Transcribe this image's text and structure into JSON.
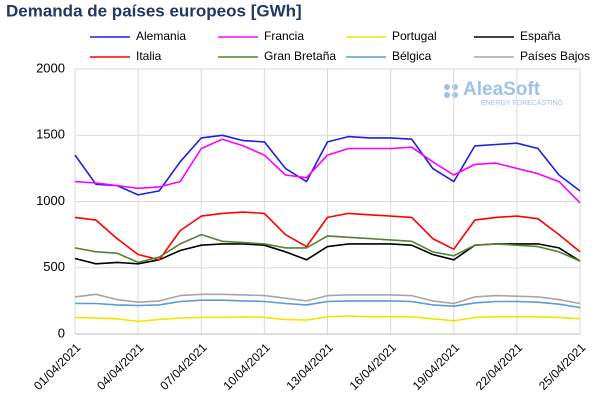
{
  "chart_data": {
    "type": "line",
    "title": "Demanda de países europeos [GWh]",
    "watermark": {
      "name": "AleaSoft",
      "tagline": "ENERGY FORECASTING"
    },
    "x": [
      "01/04/2021",
      "02/04/2021",
      "03/04/2021",
      "04/04/2021",
      "05/04/2021",
      "06/04/2021",
      "07/04/2021",
      "08/04/2021",
      "09/04/2021",
      "10/04/2021",
      "11/04/2021",
      "12/04/2021",
      "13/04/2021",
      "14/04/2021",
      "15/04/2021",
      "16/04/2021",
      "17/04/2021",
      "18/04/2021",
      "19/04/2021",
      "20/04/2021",
      "21/04/2021",
      "22/04/2021",
      "23/04/2021",
      "24/04/2021",
      "25/04/2021"
    ],
    "xticks": [
      "01/04/2021",
      "04/04/2021",
      "07/04/2021",
      "10/04/2021",
      "13/04/2021",
      "16/04/2021",
      "19/04/2021",
      "22/04/2021",
      "25/04/2021"
    ],
    "ylim": [
      0,
      2000
    ],
    "yticks": [
      0,
      500,
      1000,
      1500,
      2000
    ],
    "grid": true,
    "series": [
      {
        "name": "Alemania",
        "color": "#1f1fe0",
        "values": [
          1350,
          1130,
          1120,
          1050,
          1080,
          1300,
          1480,
          1500,
          1460,
          1450,
          1250,
          1150,
          1450,
          1490,
          1480,
          1480,
          1470,
          1250,
          1150,
          1420,
          1430,
          1440,
          1400,
          1200,
          1080
        ]
      },
      {
        "name": "Francia",
        "color": "#ff00ff",
        "values": [
          1150,
          1140,
          1120,
          1100,
          1110,
          1150,
          1400,
          1470,
          1420,
          1350,
          1200,
          1180,
          1350,
          1400,
          1400,
          1400,
          1410,
          1300,
          1200,
          1280,
          1290,
          1250,
          1210,
          1150,
          990
        ]
      },
      {
        "name": "Portugal",
        "color": "#f2e600",
        "values": [
          125,
          120,
          115,
          95,
          110,
          120,
          125,
          125,
          130,
          125,
          110,
          105,
          130,
          135,
          130,
          130,
          130,
          115,
          100,
          125,
          130,
          130,
          130,
          125,
          115
        ]
      },
      {
        "name": "España",
        "color": "#000000",
        "values": [
          570,
          530,
          540,
          530,
          560,
          630,
          670,
          680,
          680,
          670,
          620,
          560,
          660,
          680,
          680,
          680,
          670,
          600,
          560,
          670,
          680,
          680,
          680,
          650,
          550
        ]
      },
      {
        "name": "Italia",
        "color": "#ff0000",
        "values": [
          880,
          860,
          720,
          600,
          560,
          780,
          890,
          910,
          920,
          910,
          750,
          660,
          880,
          910,
          900,
          890,
          880,
          720,
          640,
          860,
          880,
          890,
          870,
          750,
          620
        ]
      },
      {
        "name": "Gran Bretaña",
        "color": "#548235",
        "values": [
          650,
          620,
          610,
          540,
          580,
          680,
          750,
          700,
          690,
          680,
          650,
          650,
          740,
          730,
          720,
          710,
          700,
          620,
          590,
          670,
          680,
          670,
          660,
          620,
          550
        ]
      },
      {
        "name": "Bélgica",
        "color": "#5b9bd5",
        "values": [
          230,
          230,
          220,
          215,
          220,
          245,
          255,
          255,
          250,
          245,
          230,
          220,
          245,
          250,
          250,
          250,
          245,
          220,
          210,
          235,
          245,
          245,
          240,
          225,
          200
        ]
      },
      {
        "name": "Países Bajos",
        "color": "#a6a6a6",
        "values": [
          280,
          300,
          260,
          240,
          250,
          290,
          300,
          300,
          295,
          290,
          270,
          250,
          290,
          295,
          295,
          295,
          290,
          250,
          230,
          280,
          290,
          285,
          280,
          260,
          230
        ]
      }
    ]
  }
}
